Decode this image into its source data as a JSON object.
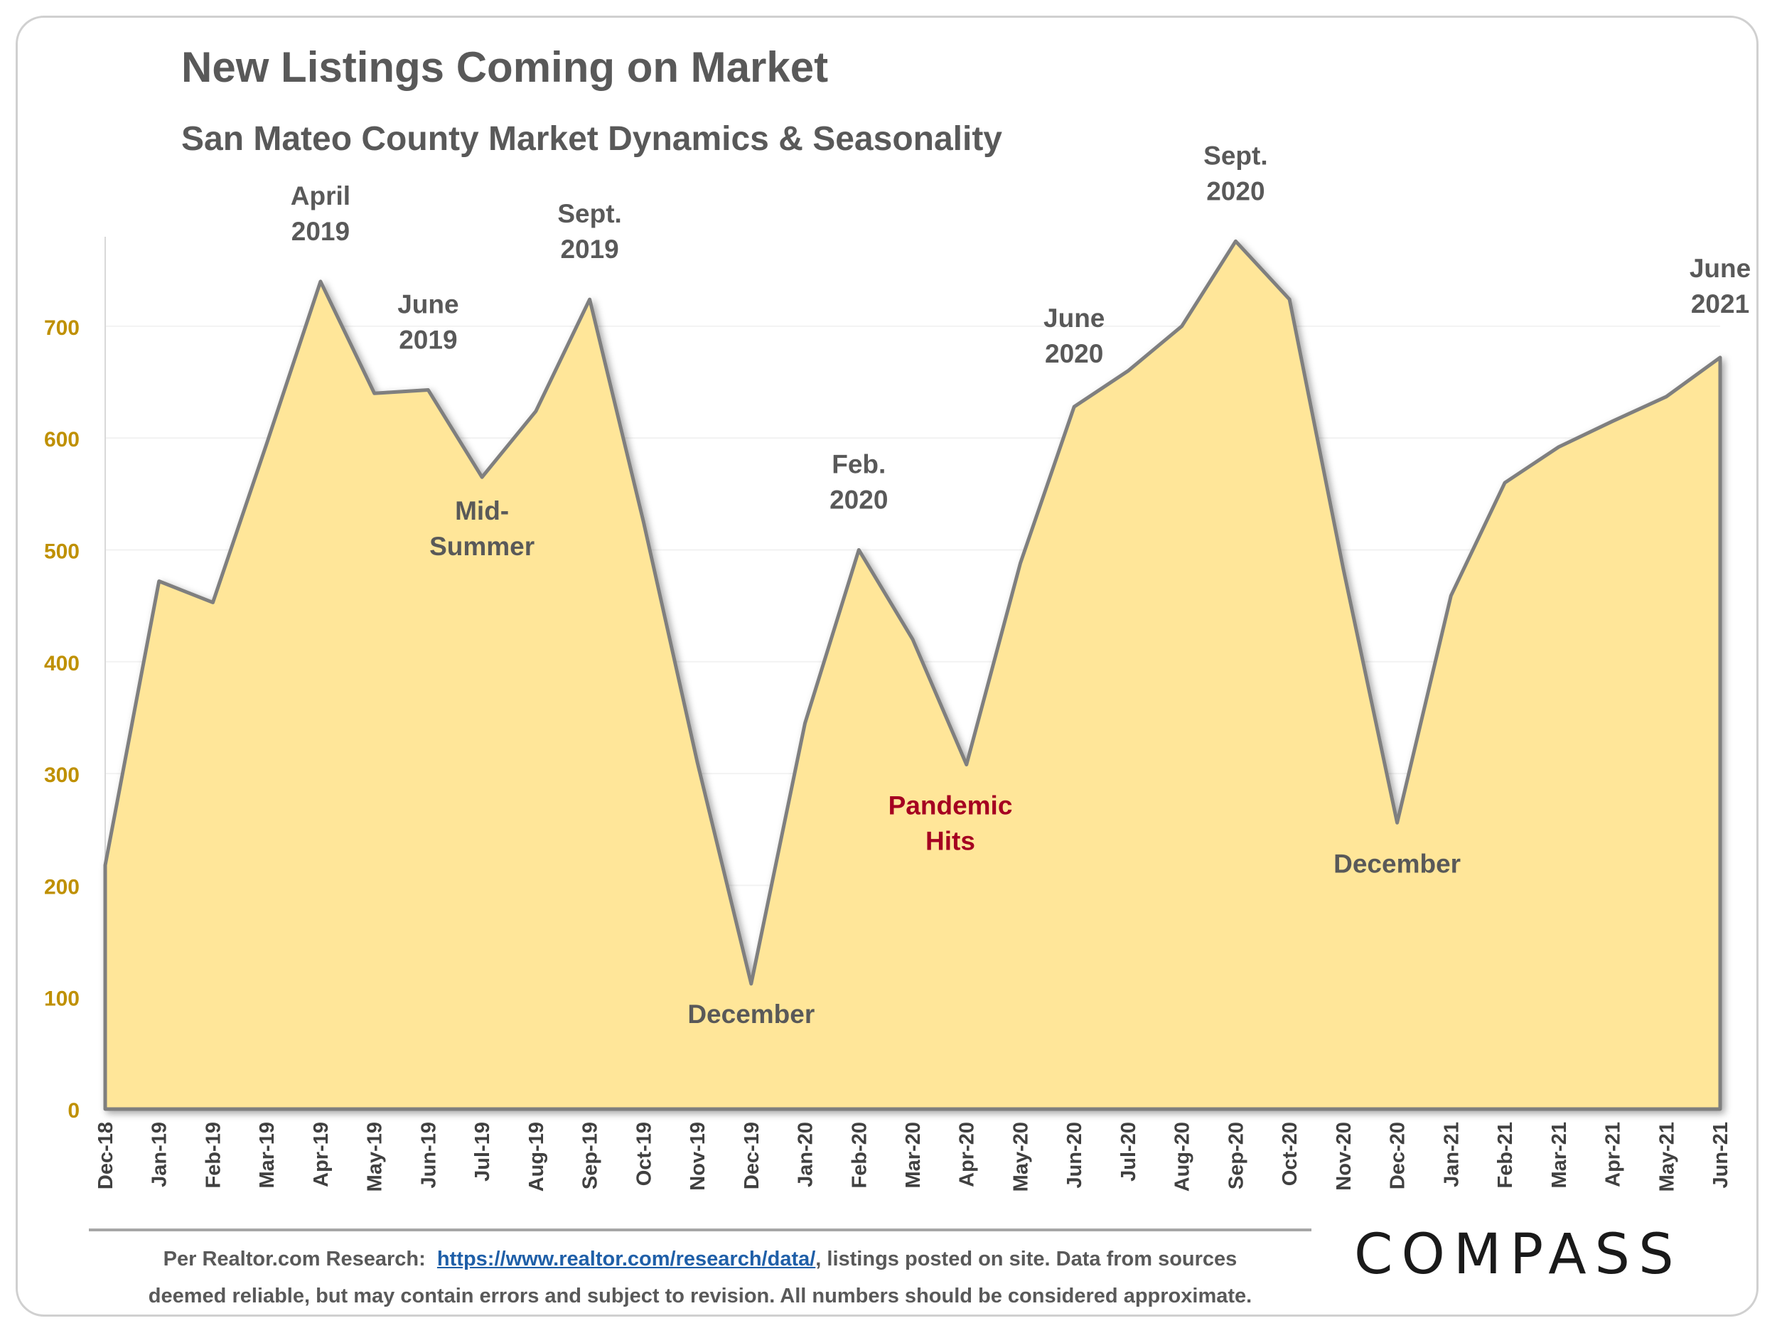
{
  "chart_data": {
    "type": "area",
    "title": "New Listings Coming on Market",
    "subtitle": "San Mateo County Market Dynamics & Seasonality",
    "categories": [
      "Dec-18",
      "Jan-19",
      "Feb-19",
      "Mar-19",
      "Apr-19",
      "May-19",
      "Jun-19",
      "Jul-19",
      "Aug-19",
      "Sep-19",
      "Oct-19",
      "Nov-19",
      "Dec-19",
      "Jan-20",
      "Feb-20",
      "Mar-20",
      "Apr-20",
      "May-20",
      "Jun-20",
      "Jul-20",
      "Aug-20",
      "Sep-20",
      "Oct-20",
      "Nov-20",
      "Dec-20",
      "Jan-21",
      "Feb-21",
      "Mar-21",
      "Apr-21",
      "May-21",
      "Jun-21"
    ],
    "values": [
      218,
      472,
      453,
      595,
      740,
      640,
      643,
      565,
      624,
      724,
      525,
      310,
      112,
      345,
      500,
      420,
      308,
      488,
      628,
      660,
      700,
      776,
      724,
      483,
      256,
      459,
      560,
      592,
      615,
      637,
      672
    ],
    "ylim": [
      0,
      780
    ],
    "yticks": [
      0,
      100,
      200,
      300,
      400,
      500,
      600,
      700
    ],
    "grid": true,
    "colors": {
      "fill": "#ffe699",
      "line": "#7f7f7f",
      "tick": "#bf9000",
      "annotation": "#595959",
      "highlight": "#a50021"
    },
    "annotations": [
      {
        "lines": [
          "April",
          "2019"
        ],
        "index": 4,
        "value": 740,
        "dy": -58,
        "color": "annotation"
      },
      {
        "lines": [
          "June",
          "2019"
        ],
        "index": 6,
        "value": 643,
        "dy": -58,
        "color": "annotation"
      },
      {
        "lines": [
          "Sept.",
          "2019"
        ],
        "index": 9,
        "value": 724,
        "dy": -58,
        "color": "annotation"
      },
      {
        "lines": [
          "Mid-",
          "Summer"
        ],
        "index": 7,
        "value": 565,
        "dy": 60,
        "color": "annotation"
      },
      {
        "lines": [
          "December"
        ],
        "index": 12,
        "value": 112,
        "dy": 55,
        "color": "annotation"
      },
      {
        "lines": [
          "Feb.",
          "2020"
        ],
        "index": 14,
        "value": 500,
        "dy": -58,
        "color": "annotation"
      },
      {
        "lines": [
          "Pandemic",
          "Hits"
        ],
        "index": 15.7,
        "value": 308,
        "dy": 70,
        "color": "highlight"
      },
      {
        "lines": [
          "June",
          "2020"
        ],
        "index": 18,
        "value": 628,
        "dy": -62,
        "color": "annotation"
      },
      {
        "lines": [
          "Sept.",
          "2020"
        ],
        "index": 21,
        "value": 776,
        "dy": -58,
        "color": "annotation"
      },
      {
        "lines": [
          "December"
        ],
        "index": 24,
        "value": 256,
        "dy": 70,
        "color": "annotation"
      },
      {
        "lines": [
          "June",
          "2021"
        ],
        "index": 30,
        "value": 672,
        "dy": -63,
        "color": "annotation"
      }
    ]
  },
  "footnote": {
    "prefix": "Per Realtor.com Research:",
    "link": "https://www.realtor.com/research/data/",
    "line1_rest": ", listings posted on site. Data from sources",
    "line2": "deemed reliable, but may contain errors and subject to revision. All numbers should be considered approximate."
  },
  "logo": "COMPASS"
}
